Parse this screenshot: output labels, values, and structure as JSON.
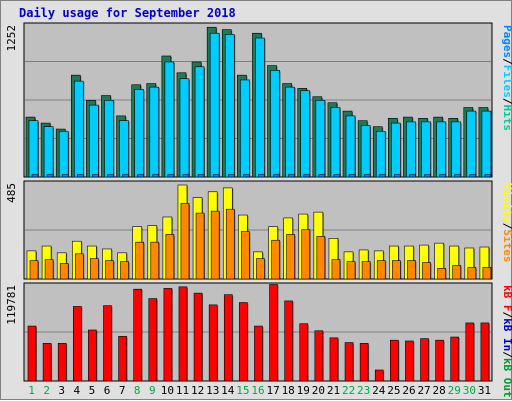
{
  "title": "Daily usage for September 2018",
  "colors": {
    "hits": "#00cc99",
    "files": "#00ccff",
    "pages": "#0088ff",
    "visits": "#ffff00",
    "sites": "#ff8800",
    "kbin": "#0000cc",
    "kbout": "#009933",
    "kbf": "#ff0000",
    "axis_text": "#0000cc",
    "panel_bg": "#c0c0c0"
  },
  "chart_data": [
    {
      "type": "bar",
      "name": "hits-files-pages",
      "categories": [
        "1",
        "2",
        "3",
        "4",
        "5",
        "6",
        "7",
        "8",
        "9",
        "10",
        "11",
        "12",
        "13",
        "14",
        "15",
        "16",
        "17",
        "18",
        "19",
        "20",
        "21",
        "22",
        "23",
        "24",
        "25",
        "26",
        "27",
        "28",
        "29",
        "30",
        "31"
      ],
      "ymax_label": "1252",
      "ylim": [
        0,
        1252
      ],
      "legend": [
        "Pages",
        "/",
        "Files",
        "/",
        "Hits"
      ],
      "series": [
        {
          "name": "Hits",
          "values": [
            500,
            450,
            400,
            850,
            640,
            680,
            510,
            770,
            780,
            1010,
            870,
            960,
            1250,
            1230,
            850,
            1200,
            930,
            780,
            740,
            670,
            620,
            550,
            470,
            420,
            490,
            500,
            490,
            500,
            490,
            580,
            580
          ]
        },
        {
          "name": "Files",
          "values": [
            470,
            420,
            380,
            800,
            600,
            640,
            470,
            730,
            750,
            960,
            820,
            920,
            1200,
            1190,
            810,
            1160,
            890,
            750,
            720,
            640,
            580,
            510,
            430,
            380,
            450,
            460,
            460,
            460,
            460,
            550,
            550
          ]
        },
        {
          "name": "Pages",
          "values": [
            20,
            20,
            20,
            20,
            20,
            20,
            20,
            20,
            20,
            20,
            20,
            20,
            20,
            20,
            20,
            20,
            20,
            20,
            20,
            20,
            20,
            20,
            20,
            20,
            20,
            20,
            20,
            20,
            20,
            20,
            20
          ]
        }
      ]
    },
    {
      "type": "bar",
      "name": "visits-sites",
      "categories": [
        "1",
        "2",
        "3",
        "4",
        "5",
        "6",
        "7",
        "8",
        "9",
        "10",
        "11",
        "12",
        "13",
        "14",
        "15",
        "16",
        "17",
        "18",
        "19",
        "20",
        "21",
        "22",
        "23",
        "24",
        "25",
        "26",
        "27",
        "28",
        "29",
        "30",
        "31"
      ],
      "ymax_label": "485",
      "ylim": [
        0,
        485
      ],
      "legend": [
        "Visits",
        "/",
        "Sites"
      ],
      "series": [
        {
          "name": "Visits",
          "values": [
            145,
            170,
            135,
            195,
            170,
            155,
            135,
            270,
            275,
            320,
            485,
            420,
            450,
            470,
            330,
            140,
            270,
            315,
            335,
            345,
            210,
            140,
            150,
            145,
            170,
            170,
            175,
            185,
            170,
            160,
            165
          ]
        },
        {
          "name": "Sites",
          "values": [
            95,
            100,
            80,
            130,
            105,
            95,
            90,
            190,
            190,
            230,
            390,
            340,
            350,
            360,
            245,
            105,
            200,
            230,
            255,
            220,
            100,
            90,
            90,
            95,
            95,
            95,
            85,
            55,
            70,
            60,
            60
          ]
        }
      ]
    },
    {
      "type": "bar",
      "name": "kbytes",
      "categories": [
        "1",
        "2",
        "3",
        "4",
        "5",
        "6",
        "7",
        "8",
        "9",
        "10",
        "11",
        "12",
        "13",
        "14",
        "15",
        "16",
        "17",
        "18",
        "19",
        "20",
        "21",
        "22",
        "23",
        "24",
        "25",
        "26",
        "27",
        "28",
        "29",
        "30",
        "31"
      ],
      "ymax_label": "119781",
      "ylim": [
        0,
        119781
      ],
      "legend": [
        "kB F",
        "/",
        "kB In",
        "/",
        "kB Out"
      ],
      "series": [
        {
          "name": "kB F",
          "values": [
            70000,
            48000,
            48000,
            95000,
            65000,
            96000,
            57000,
            117000,
            105000,
            118000,
            120000,
            112000,
            97000,
            110000,
            100000,
            70000,
            123000,
            102000,
            73000,
            64000,
            55000,
            49000,
            48000,
            14000,
            52000,
            51000,
            54000,
            52000,
            56000,
            74000,
            74000
          ]
        },
        {
          "name": "kB In",
          "values": [
            0,
            0,
            0,
            0,
            0,
            0,
            0,
            0,
            0,
            0,
            0,
            0,
            0,
            0,
            0,
            0,
            0,
            0,
            0,
            0,
            0,
            0,
            0,
            0,
            0,
            0,
            0,
            0,
            0,
            0,
            0
          ]
        },
        {
          "name": "kB Out",
          "values": [
            0,
            0,
            0,
            0,
            0,
            0,
            0,
            0,
            0,
            0,
            0,
            0,
            0,
            0,
            0,
            0,
            0,
            0,
            0,
            0,
            0,
            0,
            0,
            0,
            0,
            0,
            0,
            0,
            0,
            0,
            0
          ]
        }
      ]
    }
  ],
  "x_axis": {
    "labels": [
      "1",
      "2",
      "3",
      "4",
      "5",
      "6",
      "7",
      "8",
      "9",
      "10",
      "11",
      "12",
      "13",
      "14",
      "15",
      "16",
      "17",
      "18",
      "19",
      "20",
      "21",
      "22",
      "23",
      "24",
      "25",
      "26",
      "27",
      "28",
      "29",
      "30",
      "31"
    ],
    "weekend_days": [
      1,
      2,
      8,
      9,
      15,
      16,
      22,
      23,
      29,
      30
    ],
    "weekend_color": "#00aa44",
    "weekday_color": "#000000"
  }
}
